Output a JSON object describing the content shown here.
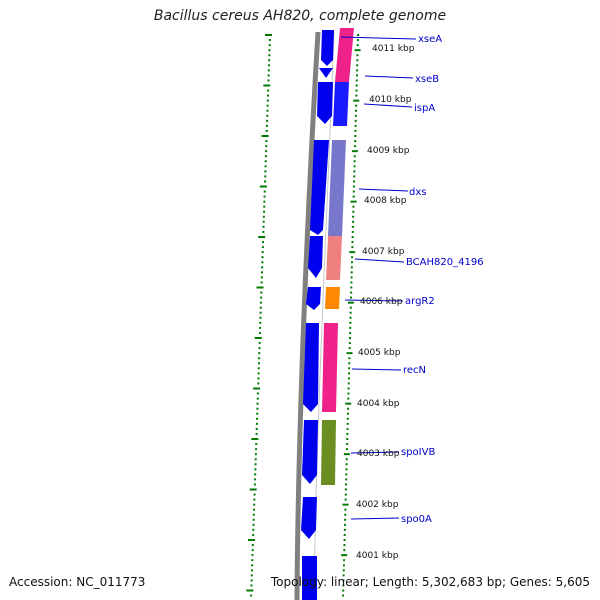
{
  "title": "Bacillus cereus AH820, complete genome",
  "footer": {
    "accession": "Accession: NC_011773",
    "summary": "Topology: linear; Length: 5,302,683 bp; Genes: 5,605"
  },
  "colors": {
    "backbone": "#808080",
    "strand": "#0000ee",
    "tick": "#007a00",
    "label": "#0000cc",
    "ruler_text": "#111111"
  },
  "ruler": [
    {
      "label": "4011 kbp"
    },
    {
      "label": "4010 kbp"
    },
    {
      "label": "4009 kbp"
    },
    {
      "label": "4008 kbp"
    },
    {
      "label": "4007 kbp"
    },
    {
      "label": "4006 kbp"
    },
    {
      "label": "4005 kbp"
    },
    {
      "label": "4004 kbp"
    },
    {
      "label": "4003 kbp"
    },
    {
      "label": "4002 kbp"
    },
    {
      "label": "4001 kbp"
    }
  ],
  "genes": [
    {
      "name": "xseA",
      "category_color": "#ee2288"
    },
    {
      "name": "xseB",
      "category_color": "#ee2288"
    },
    {
      "name": "ispA",
      "category_color": "#1a1aff"
    },
    {
      "name": "dxs",
      "category_color": "#7777cc"
    },
    {
      "name": "BCAH820_4196",
      "category_color": "#ee8080"
    },
    {
      "name": "argR2",
      "category_color": "#ff8800"
    },
    {
      "name": "recN",
      "category_color": "#ee2288"
    },
    {
      "name": "spoIVB",
      "category_color": "#6b8e23"
    },
    {
      "name": "spo0A",
      "category_color": "#ffffff"
    }
  ]
}
